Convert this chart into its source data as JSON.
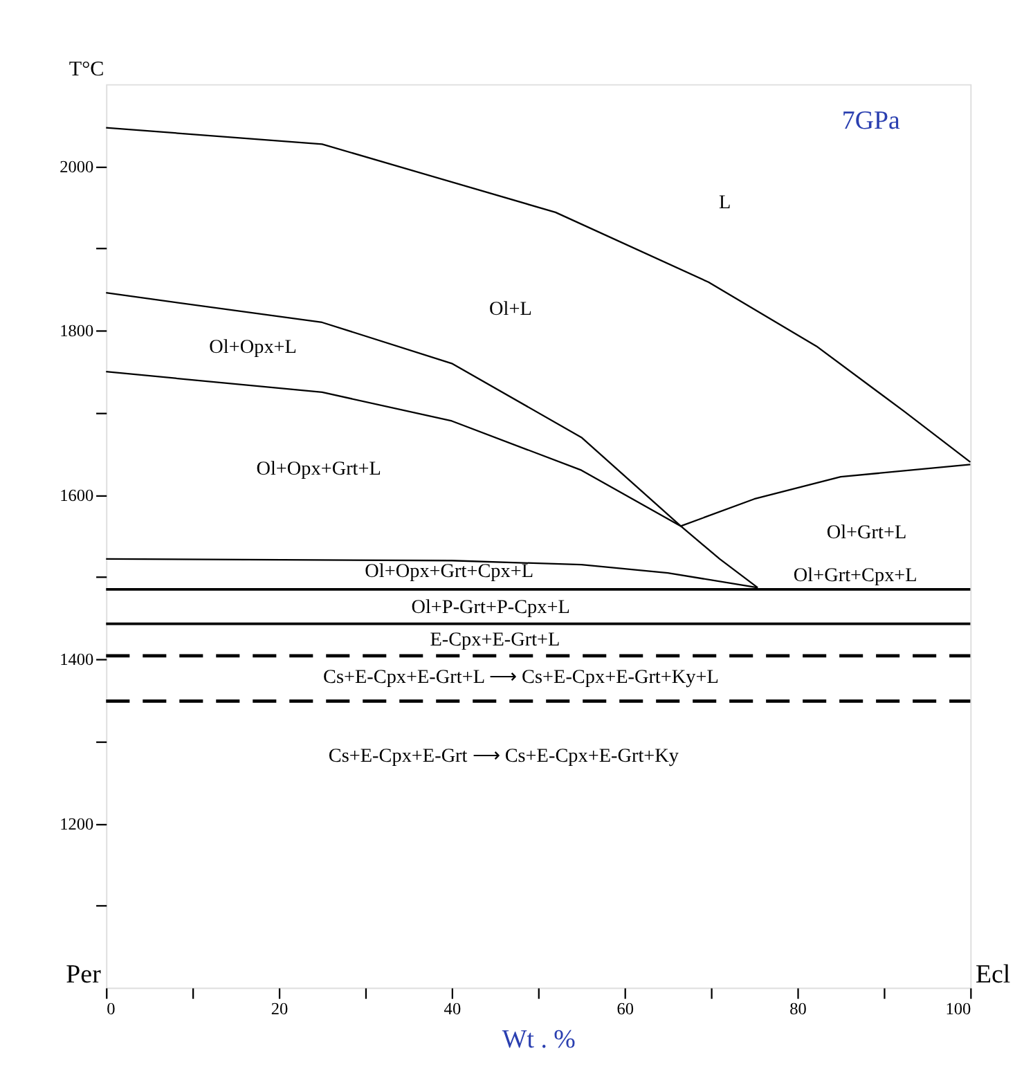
{
  "chart_data": {
    "type": "line",
    "title": "7GPa",
    "xlabel": "Wt . %",
    "ylabel": "T°C",
    "xlim": [
      0,
      100
    ],
    "ylim": [
      1000,
      2100
    ],
    "xticks": [
      0,
      {
        "value": 10,
        "label": null
      },
      20,
      {
        "value": 30,
        "label": null
      },
      40,
      {
        "value": 50,
        "label": null
      },
      60,
      {
        "value": 70,
        "label": null
      },
      80,
      {
        "value": 90,
        "label": null
      },
      100
    ],
    "yticks": [
      {
        "value": 1100,
        "label": null
      },
      1200,
      {
        "value": 1300,
        "label": null
      },
      1400,
      {
        "value": 1500,
        "label": null
      },
      1600,
      {
        "value": 1700,
        "label": null
      },
      1800,
      {
        "value": 1900,
        "label": null
      },
      2000
    ],
    "grid": false,
    "marker": "none",
    "series": [
      {
        "color": "#000000",
        "line_style": "solid",
        "x": [
          0,
          25,
          52,
          69.7,
          82.2,
          92.3,
          100
        ],
        "values": [
          2047,
          2027,
          1944,
          1859,
          1781,
          1702,
          1640
        ]
      },
      {
        "color": "#000000",
        "line_style": "solid",
        "x": [
          0,
          25,
          40,
          55,
          66.5,
          71,
          75.4
        ],
        "values": [
          1846,
          1810,
          1760,
          1670,
          1562,
          1522,
          1487
        ]
      },
      {
        "color": "#000000",
        "line_style": "solid",
        "x": [
          0,
          25,
          40,
          55,
          66.5,
          75,
          85,
          100
        ],
        "values": [
          1750,
          1725,
          1690,
          1630,
          1562,
          1595,
          1622,
          1637
        ]
      },
      {
        "color": "#000000",
        "line_style": "solid",
        "x": [
          0,
          40,
          55,
          65,
          75.4
        ],
        "values": [
          1522,
          1520,
          1515,
          1505,
          1487
        ]
      },
      {
        "color": "#000000",
        "line_style": "solid",
        "x": [
          0,
          100
        ],
        "values": [
          1485,
          1485
        ]
      },
      {
        "color": "#000000",
        "line_style": "solid",
        "x": [
          0,
          100
        ],
        "values": [
          1443,
          1443
        ]
      },
      {
        "color": "#000000",
        "line_style": "dashed",
        "x": [
          0,
          100
        ],
        "values": [
          1404,
          1404
        ]
      },
      {
        "color": "#000000",
        "line_style": "dashed",
        "x": [
          0,
          100
        ],
        "values": [
          1349,
          1349
        ]
      }
    ],
    "annotations": [
      "L",
      "Ol+L",
      "Ol+Opx+L",
      "Ol+Opx+Grt+L",
      "Ol+Grt+L",
      "Ol+Opx+Grt+Cpx+L",
      "Ol+Grt+Cpx+L",
      "Ol+P-Grt+P-Cpx+L",
      "E-Cpx+E-Grt+L",
      "Cs+E-Cpx+E-Grt+L ⟶ Cs+E-Cpx+E-Grt+Ky+L",
      "Cs+E-Cpx+E-Grt ⟶ Cs+E-Cpx+E-Grt+Ky",
      "Per",
      "Ecl"
    ]
  }
}
